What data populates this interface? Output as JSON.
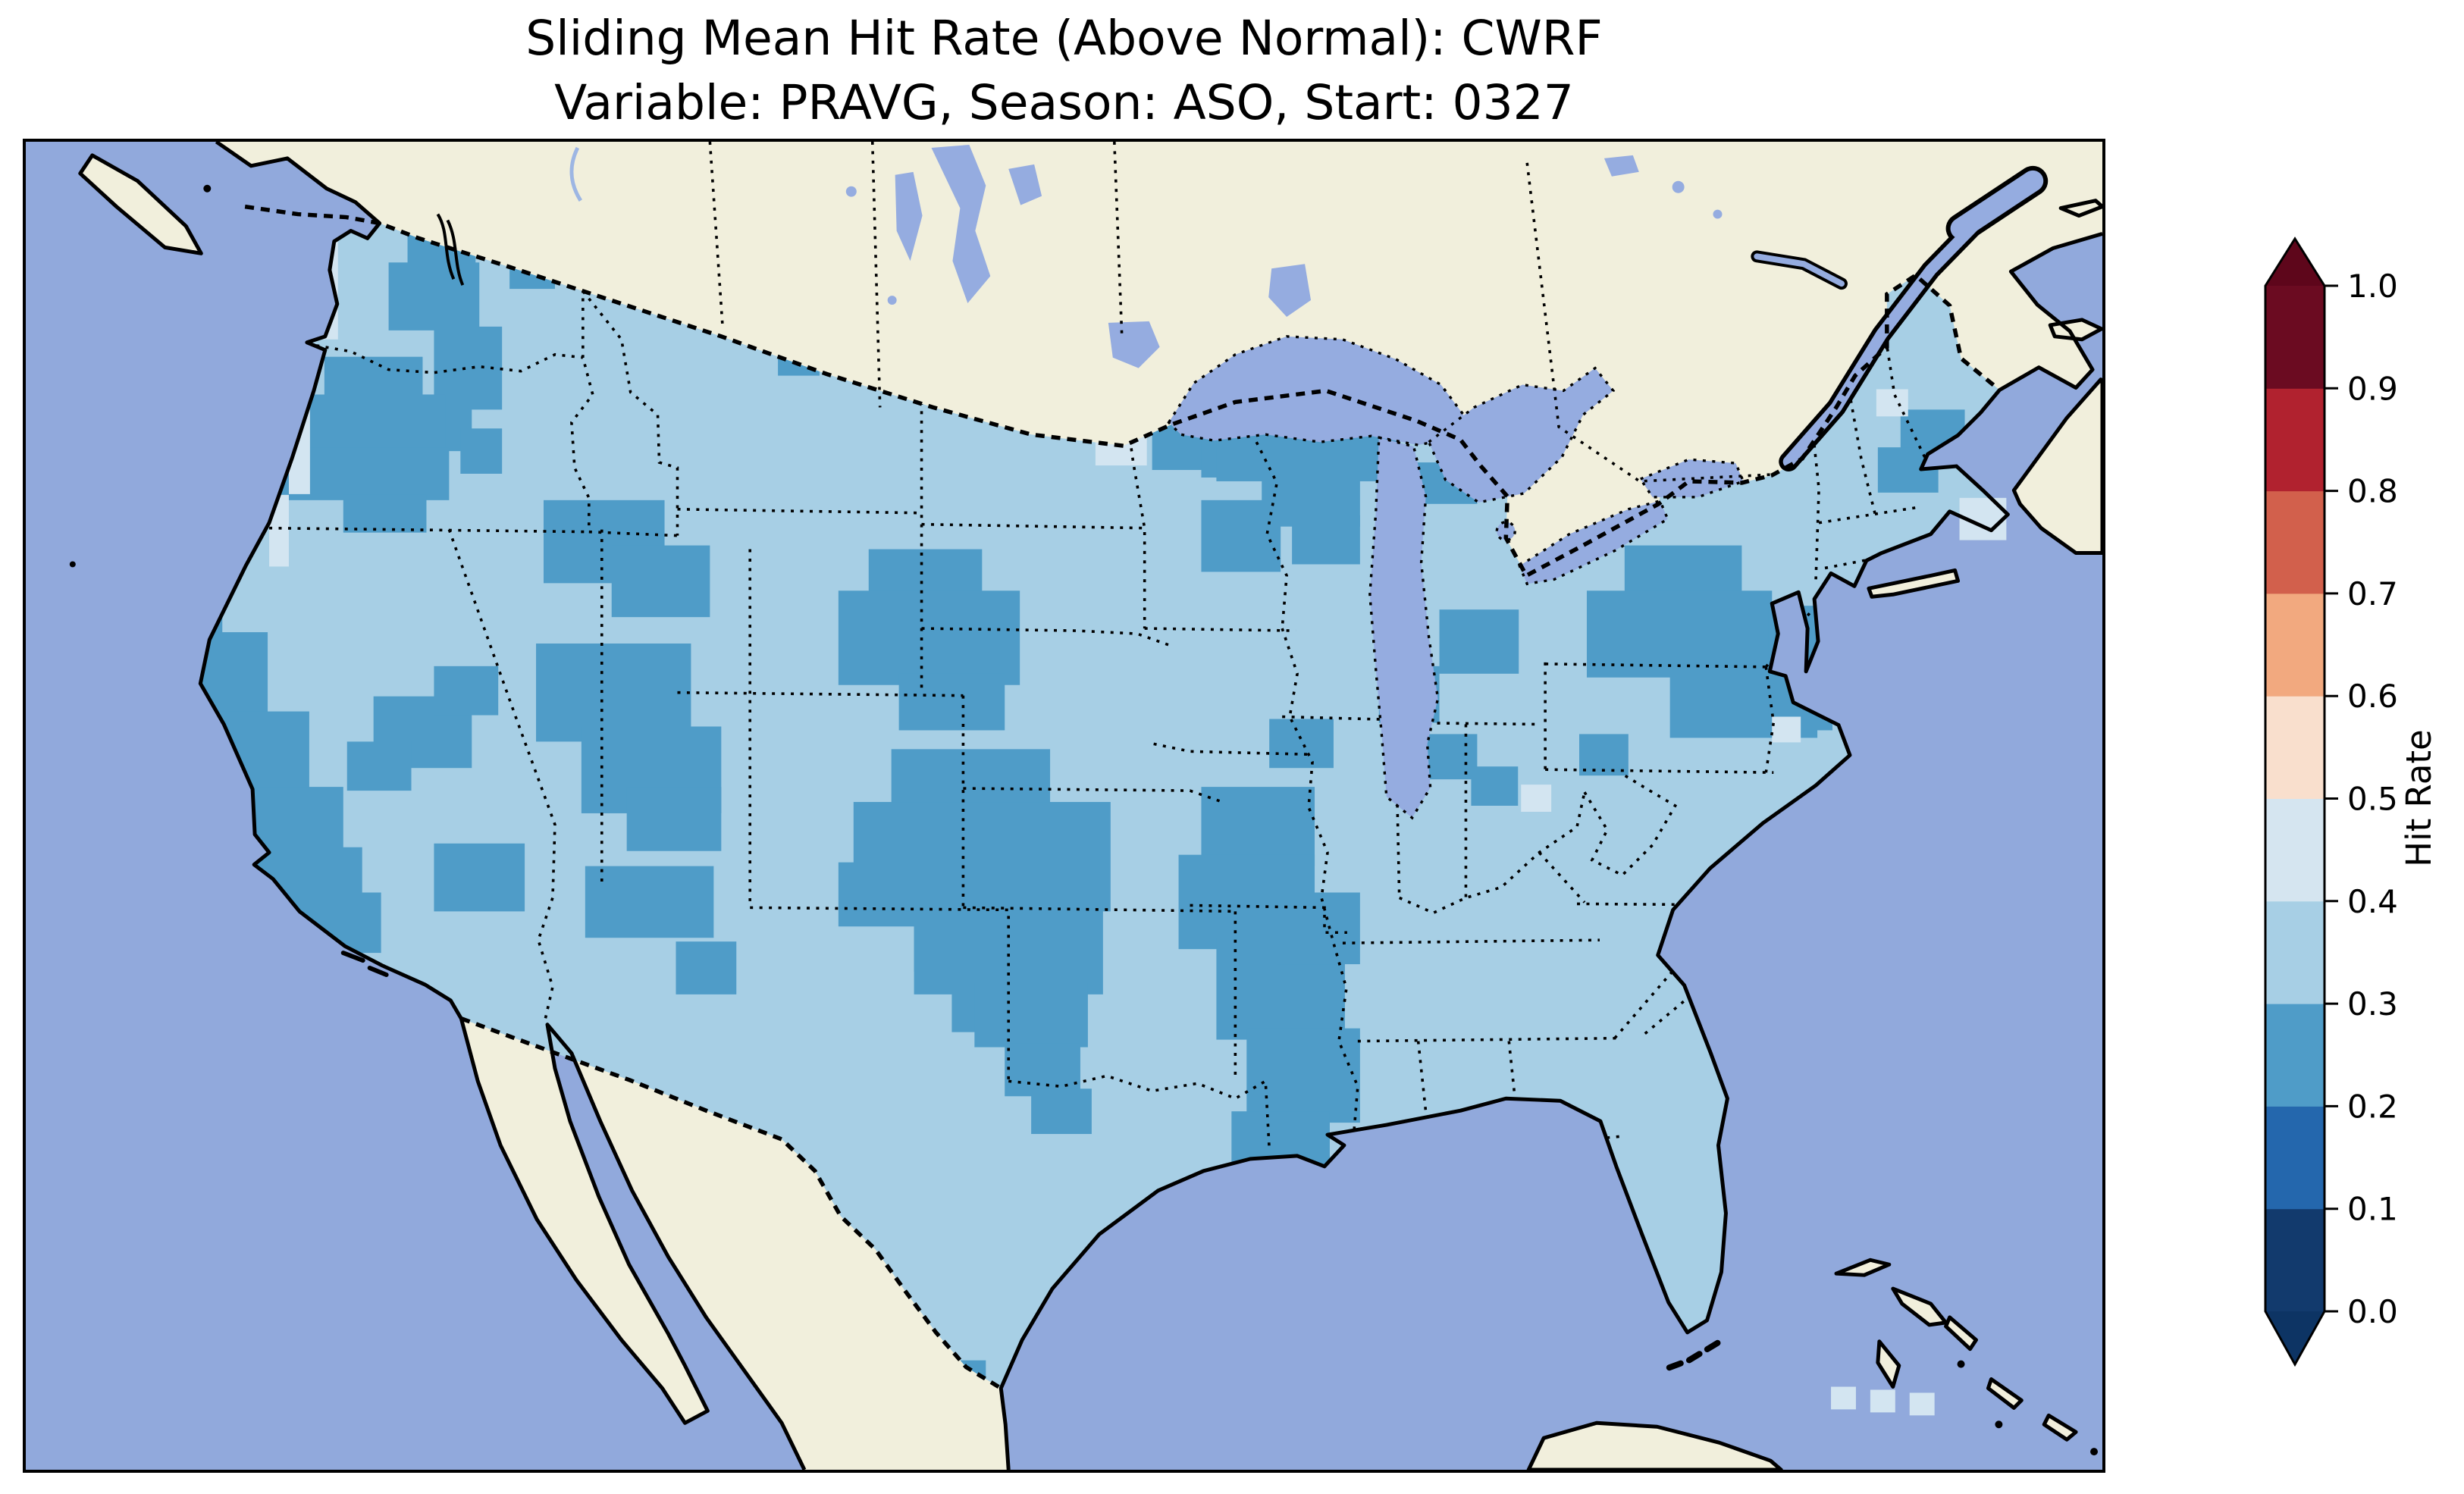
{
  "figure": {
    "title_line1": "Sliding Mean Hit Rate (Above Normal): CWRF",
    "title_line2": "Variable: PRAVG, Season: ASO, Start: 0327"
  },
  "colorbar": {
    "label": "Hit Rate",
    "ticks": [
      "0.0",
      "0.1",
      "0.2",
      "0.3",
      "0.4",
      "0.5",
      "0.6",
      "0.7",
      "0.8",
      "0.9",
      "1.0"
    ],
    "segments": [
      {
        "from": 0.0,
        "to": 0.1,
        "color": "#123a6d"
      },
      {
        "from": 0.1,
        "to": 0.2,
        "color": "#2467ad"
      },
      {
        "from": 0.2,
        "to": 0.3,
        "color": "#4f9cc8"
      },
      {
        "from": 0.3,
        "to": 0.4,
        "color": "#a7cfe5"
      },
      {
        "from": 0.4,
        "to": 0.5,
        "color": "#d5e5f0"
      },
      {
        "from": 0.5,
        "to": 0.6,
        "color": "#f9dfcd"
      },
      {
        "from": 0.6,
        "to": 0.7,
        "color": "#f2a97f"
      },
      {
        "from": 0.7,
        "to": 0.8,
        "color": "#d2604c"
      },
      {
        "from": 0.8,
        "to": 0.9,
        "color": "#b1222f"
      },
      {
        "from": 0.9,
        "to": 1.0,
        "color": "#6b0b21"
      }
    ],
    "under_color": "#0d3464",
    "over_color": "#5e061b"
  },
  "map": {
    "ocean_color": "#91a9dc",
    "lake_color": "#95ace0",
    "land_color": "#f1efdc",
    "us_fill_color": "#a7cfe5",
    "cell_medium_color": "#4f9cc8",
    "cell_pale_color": "#d3e5f1",
    "coastline_color": "#000000",
    "border_style": "dotted black state and national boundaries"
  },
  "chart_data": {
    "type": "heatmap",
    "title": "Sliding Mean Hit Rate (Above Normal): CWRF",
    "subtitle": "Variable: PRAVG, Season: ASO, Start: 0327",
    "model": "CWRF",
    "variable": "PRAVG",
    "season": "ASO",
    "start": "0327",
    "region": "Continental United States",
    "colorbar_label": "Hit Rate",
    "value_range": [
      0.0,
      1.0
    ],
    "bin_width": 0.1,
    "colorbar_extends": "both (arrow below 0.0 and above 1.0)",
    "dominant_bin": {
      "range": "0.3-0.4",
      "coverage": "most of CONUS grid cells (light blue)"
    },
    "secondary_bin": {
      "range": "0.2-0.3",
      "coverage": "clustered patches (medium blue)"
    },
    "secondary_bin_regions": [
      "Pacific Northwest / northern Idaho",
      "central Oregon",
      "California coast and Sierra Nevada",
      "Great Basin (Nevada / Utah)",
      "Colorado and northern New Mexico",
      "Wyoming - Nebraska panhandle",
      "central Plains (Kansas / Oklahoma / Texas panhandle)",
      "upper Midwest (Minnesota / Wisconsin / Upper Michigan)",
      "lower Michigan",
      "lower Mississippi Valley (Arkansas / Mississippi / Louisiana)",
      "mid-Atlantic (Pennsylvania / Maryland / New Jersey)",
      "coastal North Carolina",
      "coastal Maine"
    ],
    "sparse_bin": {
      "range": "0.4-0.5",
      "coverage": "isolated pale cells (Pacific NW coast strip, Montana border, Cape Cod, near Florida Keys)"
    },
    "bins_not_present": "no cells with hit rate >= 0.5 (warm colors unused on map)"
  }
}
